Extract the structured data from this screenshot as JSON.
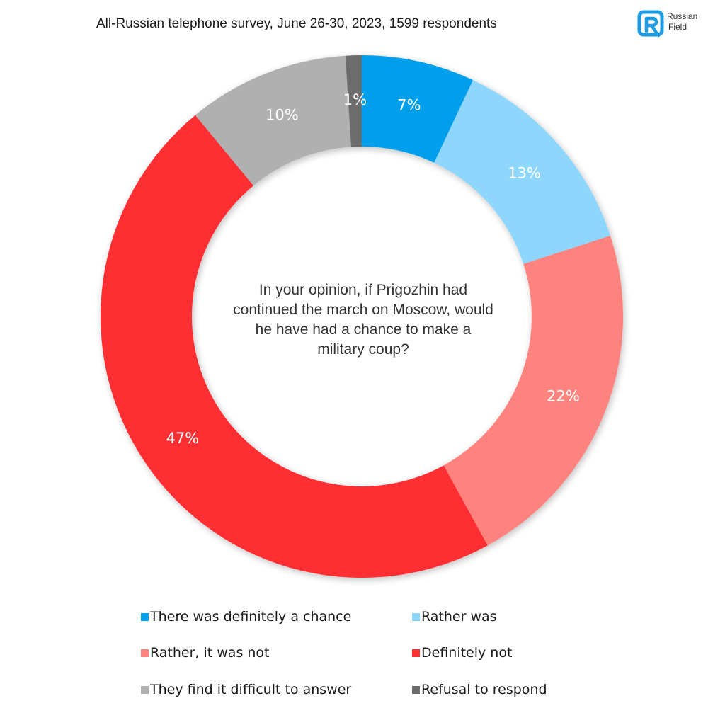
{
  "header": {
    "survey_title": "All-Russian telephone survey, June 26-30, 2023, 1599 respondents"
  },
  "logo": {
    "line1": "Russian",
    "line2": "Field",
    "color": "#1e9be0"
  },
  "chart_data": {
    "type": "pie",
    "donut": true,
    "question": "In your opinion, if Prigozhin had\ncontinued the march on Moscow, would \nhe have had a chance to make a\nmilitary coup?",
    "start_direction": "top, clockwise",
    "slices": [
      {
        "name": "There was definitely a chance",
        "value": 7,
        "label": "7%",
        "color": "#049fec"
      },
      {
        "name": "Rather was",
        "value": 13,
        "label": "13%",
        "color": "#8fd6fc"
      },
      {
        "name": "Rather, it was not",
        "value": 22,
        "label": "22%",
        "color": "#fe827e"
      },
      {
        "name": "Definitely not",
        "value": 47,
        "label": "47%",
        "color": "#fe2f30"
      },
      {
        "name": "They find it difficult to answer",
        "value": 10,
        "label": "10%",
        "color": "#b0b0b0"
      },
      {
        "name": "Refusal to respond",
        "value": 1,
        "label": "1%",
        "color": "#6c6c6c"
      }
    ],
    "legend": {
      "placement": "bottom",
      "entries": [
        {
          "text": "There was definitely a chance",
          "color": "#049fec"
        },
        {
          "text": "Rather was",
          "color": "#8fd6fc"
        },
        {
          "text": "Rather, it was not",
          "color": "#fe827e"
        },
        {
          "text": "Definitely not",
          "color": "#fe2f30"
        },
        {
          "text": "They find it difficult to answer",
          "color": "#b0b0b0"
        },
        {
          "text": "Refusal to respond",
          "color": "#6c6c6c"
        }
      ]
    }
  }
}
